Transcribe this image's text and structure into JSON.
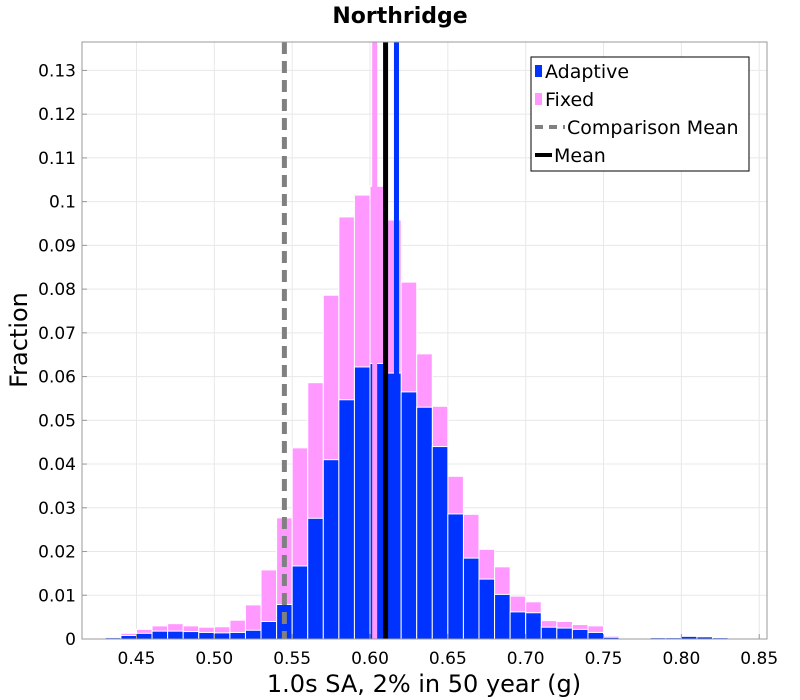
{
  "chart_data": {
    "type": "bar",
    "title": "Northridge",
    "xlabel": "1.0s SA, 2% in 50 year (g)",
    "ylabel": "Fraction",
    "xlim": [
      0.415,
      0.855
    ],
    "ylim": [
      0,
      0.1365
    ],
    "grid": true,
    "legend_placement": "top-right",
    "bin_width": 0.01,
    "x_ticks": [
      0.45,
      0.5,
      0.55,
      0.6,
      0.65,
      0.7,
      0.75,
      0.8,
      0.85
    ],
    "x_tick_labels": [
      "0.45",
      "0.50",
      "0.55",
      "0.60",
      "0.65",
      "0.70",
      "0.75",
      "0.80",
      "0.85"
    ],
    "y_ticks": [
      0,
      0.01,
      0.02,
      0.03,
      0.04,
      0.05,
      0.06,
      0.07,
      0.08,
      0.09,
      0.1,
      0.11,
      0.12,
      0.13
    ],
    "y_tick_labels": [
      "0",
      "0.01",
      "0.02",
      "0.03",
      "0.04",
      "0.05",
      "0.06",
      "0.07",
      "0.08",
      "0.09",
      "0.1",
      "0.11",
      "0.12",
      "0.13"
    ],
    "series": [
      {
        "name": "Fixed",
        "color": "#ff99ff",
        "bin_left": [
          0.42,
          0.43,
          0.44,
          0.45,
          0.46,
          0.47,
          0.48,
          0.49,
          0.5,
          0.51,
          0.52,
          0.53,
          0.54,
          0.55,
          0.56,
          0.57,
          0.58,
          0.59,
          0.6,
          0.61,
          0.62,
          0.63,
          0.64,
          0.65,
          0.66,
          0.67,
          0.68,
          0.69,
          0.7,
          0.71,
          0.72,
          0.73,
          0.74,
          0.75,
          0.76,
          0.77,
          0.78,
          0.79,
          0.8,
          0.81,
          0.82,
          0.83,
          0.84
        ],
        "values": [
          0.0002,
          0.0005,
          0.0013,
          0.0022,
          0.003,
          0.0035,
          0.003,
          0.0027,
          0.0028,
          0.0043,
          0.0078,
          0.0158,
          0.0277,
          0.0437,
          0.0586,
          0.0786,
          0.0965,
          0.1015,
          0.1035,
          0.0958,
          0.0816,
          0.0652,
          0.0532,
          0.0372,
          0.0285,
          0.0205,
          0.0165,
          0.0098,
          0.0085,
          0.0042,
          0.004,
          0.0033,
          0.003,
          0.0007,
          0.0003,
          0.0002,
          0.0002,
          0.0004,
          0.0006,
          0.0005,
          0.0003,
          0.0002,
          0.0001
        ]
      },
      {
        "name": "Adaptive",
        "color": "#0033ff",
        "bin_left": [
          0.42,
          0.43,
          0.44,
          0.45,
          0.46,
          0.47,
          0.48,
          0.49,
          0.5,
          0.51,
          0.52,
          0.53,
          0.54,
          0.55,
          0.56,
          0.57,
          0.58,
          0.59,
          0.6,
          0.61,
          0.62,
          0.63,
          0.64,
          0.65,
          0.66,
          0.67,
          0.68,
          0.69,
          0.7,
          0.71,
          0.72,
          0.73,
          0.74,
          0.75,
          0.76,
          0.77,
          0.78,
          0.79,
          0.8,
          0.81,
          0.82,
          0.83,
          0.84
        ],
        "values": [
          0.0001,
          0.0003,
          0.0008,
          0.0013,
          0.0018,
          0.0018,
          0.0017,
          0.0015,
          0.0014,
          0.0015,
          0.002,
          0.004,
          0.0079,
          0.0167,
          0.0276,
          0.041,
          0.0547,
          0.0622,
          0.063,
          0.0608,
          0.0565,
          0.053,
          0.044,
          0.0286,
          0.0185,
          0.0137,
          0.0102,
          0.0062,
          0.006,
          0.0027,
          0.0025,
          0.0022,
          0.0015,
          0.0004,
          0.0002,
          0.0002,
          0.0003,
          0.0003,
          0.0006,
          0.0005,
          0.0003,
          0.0001,
          0.0001
        ]
      }
    ],
    "vertical_lines": [
      {
        "name": "Comparison Mean",
        "x": 0.545,
        "color": "#808080",
        "style": "dashed"
      },
      {
        "name": "Mean",
        "x": 0.61,
        "color": "#000000",
        "style": "solid"
      },
      {
        "name": "",
        "x": 0.603,
        "color": "#ff99ff",
        "style": "solid"
      },
      {
        "name": "",
        "x": 0.617,
        "color": "#0033ff",
        "style": "solid"
      }
    ],
    "legend": [
      {
        "label": "Adaptive",
        "kind": "patch",
        "color": "#0033ff"
      },
      {
        "label": "Fixed",
        "kind": "patch",
        "color": "#ff99ff"
      },
      {
        "label": "Comparison Mean",
        "kind": "dashed-line",
        "color": "#808080"
      },
      {
        "label": "Mean",
        "kind": "solid-line",
        "color": "#000000"
      }
    ]
  }
}
